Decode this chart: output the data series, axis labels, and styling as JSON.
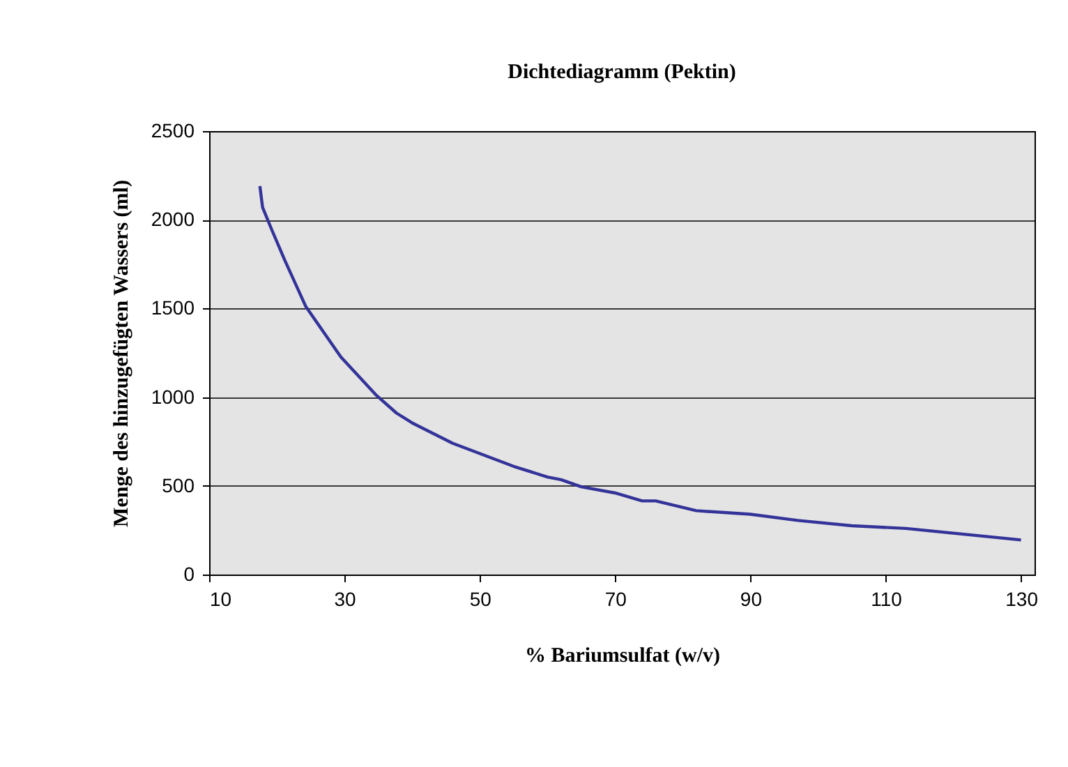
{
  "chart_data": {
    "type": "line",
    "title": "Dichtediagramm (Pektin)",
    "xlabel": "% Bariumsulfat (w/v)",
    "ylabel": "Menge des hinzugefügten Wassers (ml)",
    "x": [
      17.5,
      17.9,
      19.3,
      21.2,
      24.3,
      29.5,
      34.6,
      37.7,
      40,
      46,
      55,
      60,
      62,
      65,
      70,
      74,
      76,
      82,
      90,
      97,
      105,
      113,
      130
    ],
    "series": [
      {
        "color": "#333399",
        "values": [
          2190,
          2070,
          1940,
          1770,
          1510,
          1225,
          1015,
          910,
          855,
          740,
          610,
          550,
          535,
          495,
          460,
          415,
          415,
          360,
          340,
          305,
          275,
          260,
          195
        ]
      }
    ],
    "xlim": [
      10,
      132
    ],
    "xticks": [
      10,
      30,
      50,
      70,
      90,
      110,
      130
    ],
    "ylim": [
      0,
      2500
    ],
    "yticks": [
      0,
      500,
      1000,
      1500,
      2000,
      2500
    ],
    "grid": "y",
    "marker": "none",
    "line_style": "solid"
  }
}
